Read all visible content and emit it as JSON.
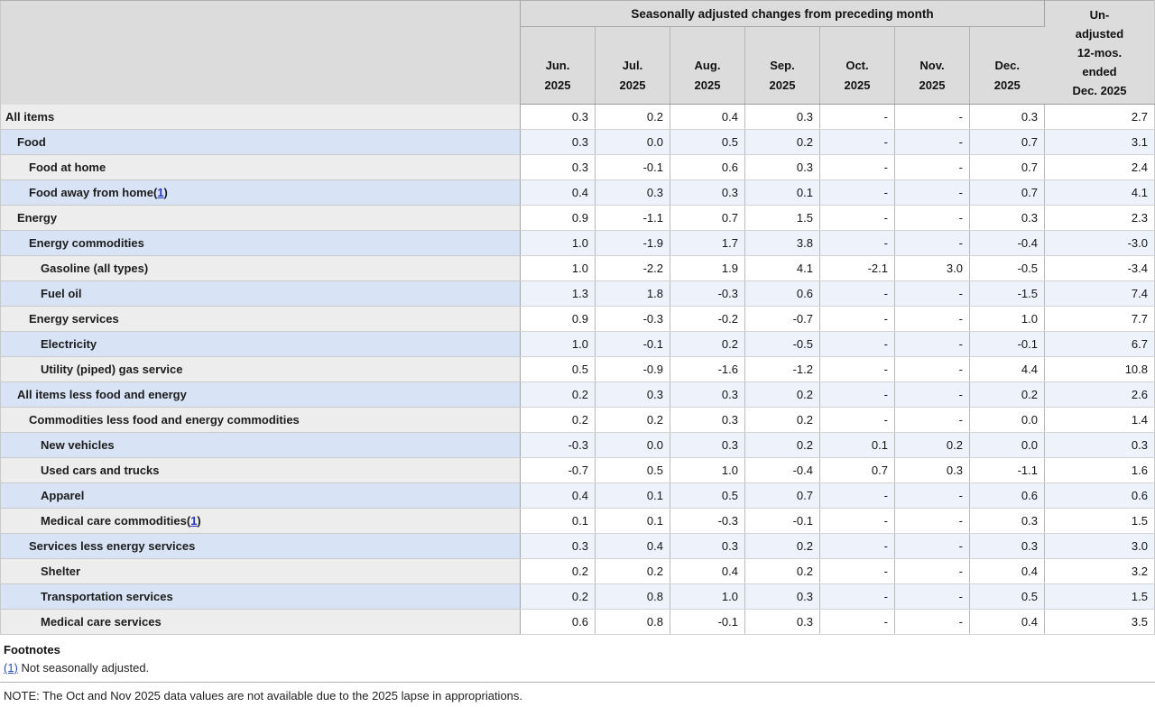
{
  "chart_data": {
    "type": "table",
    "group_header": "Seasonally adjusted changes from preceding month",
    "month_columns": [
      {
        "month": "Jun.",
        "year": "2025"
      },
      {
        "month": "Jul.",
        "year": "2025"
      },
      {
        "month": "Aug.",
        "year": "2025"
      },
      {
        "month": "Sep.",
        "year": "2025"
      },
      {
        "month": "Oct.",
        "year": "2025"
      },
      {
        "month": "Nov.",
        "year": "2025"
      },
      {
        "month": "Dec.",
        "year": "2025"
      }
    ],
    "last_column_label": "Un-adjusted 12-mos. ended Dec. 2025",
    "last_column_lines": [
      "Un-",
      "adjusted",
      "12-mos.",
      "ended",
      "Dec. 2025"
    ],
    "rows": [
      {
        "label": "All items",
        "indent": 0,
        "footnote": null,
        "values": [
          "0.3",
          "0.2",
          "0.4",
          "0.3",
          "-",
          "-",
          "0.3",
          "2.7"
        ]
      },
      {
        "label": "Food",
        "indent": 1,
        "footnote": null,
        "values": [
          "0.3",
          "0.0",
          "0.5",
          "0.2",
          "-",
          "-",
          "0.7",
          "3.1"
        ]
      },
      {
        "label": "Food at home",
        "indent": 2,
        "footnote": null,
        "values": [
          "0.3",
          "-0.1",
          "0.6",
          "0.3",
          "-",
          "-",
          "0.7",
          "2.4"
        ]
      },
      {
        "label": "Food away from home",
        "indent": 2,
        "footnote": "1",
        "values": [
          "0.4",
          "0.3",
          "0.3",
          "0.1",
          "-",
          "-",
          "0.7",
          "4.1"
        ]
      },
      {
        "label": "Energy",
        "indent": 1,
        "footnote": null,
        "values": [
          "0.9",
          "-1.1",
          "0.7",
          "1.5",
          "-",
          "-",
          "0.3",
          "2.3"
        ]
      },
      {
        "label": "Energy commodities",
        "indent": 2,
        "footnote": null,
        "values": [
          "1.0",
          "-1.9",
          "1.7",
          "3.8",
          "-",
          "-",
          "-0.4",
          "-3.0"
        ]
      },
      {
        "label": "Gasoline (all types)",
        "indent": 3,
        "footnote": null,
        "values": [
          "1.0",
          "-2.2",
          "1.9",
          "4.1",
          "-2.1",
          "3.0",
          "-0.5",
          "-3.4"
        ]
      },
      {
        "label": "Fuel oil",
        "indent": 3,
        "footnote": null,
        "values": [
          "1.3",
          "1.8",
          "-0.3",
          "0.6",
          "-",
          "-",
          "-1.5",
          "7.4"
        ]
      },
      {
        "label": "Energy services",
        "indent": 2,
        "footnote": null,
        "values": [
          "0.9",
          "-0.3",
          "-0.2",
          "-0.7",
          "-",
          "-",
          "1.0",
          "7.7"
        ]
      },
      {
        "label": "Electricity",
        "indent": 3,
        "footnote": null,
        "values": [
          "1.0",
          "-0.1",
          "0.2",
          "-0.5",
          "-",
          "-",
          "-0.1",
          "6.7"
        ]
      },
      {
        "label": "Utility (piped) gas service",
        "indent": 3,
        "footnote": null,
        "values": [
          "0.5",
          "-0.9",
          "-1.6",
          "-1.2",
          "-",
          "-",
          "4.4",
          "10.8"
        ]
      },
      {
        "label": "All items less food and energy",
        "indent": 1,
        "footnote": null,
        "values": [
          "0.2",
          "0.3",
          "0.3",
          "0.2",
          "-",
          "-",
          "0.2",
          "2.6"
        ]
      },
      {
        "label": "Commodities less food and energy commodities",
        "indent": 2,
        "footnote": null,
        "values": [
          "0.2",
          "0.2",
          "0.3",
          "0.2",
          "-",
          "-",
          "0.0",
          "1.4"
        ]
      },
      {
        "label": "New vehicles",
        "indent": 3,
        "footnote": null,
        "values": [
          "-0.3",
          "0.0",
          "0.3",
          "0.2",
          "0.1",
          "0.2",
          "0.0",
          "0.3"
        ]
      },
      {
        "label": "Used cars and trucks",
        "indent": 3,
        "footnote": null,
        "values": [
          "-0.7",
          "0.5",
          "1.0",
          "-0.4",
          "0.7",
          "0.3",
          "-1.1",
          "1.6"
        ]
      },
      {
        "label": "Apparel",
        "indent": 3,
        "footnote": null,
        "values": [
          "0.4",
          "0.1",
          "0.5",
          "0.7",
          "-",
          "-",
          "0.6",
          "0.6"
        ]
      },
      {
        "label": "Medical care commodities",
        "indent": 3,
        "footnote": "1",
        "values": [
          "0.1",
          "0.1",
          "-0.3",
          "-0.1",
          "-",
          "-",
          "0.3",
          "1.5"
        ]
      },
      {
        "label": "Services less energy services",
        "indent": 2,
        "footnote": null,
        "values": [
          "0.3",
          "0.4",
          "0.3",
          "0.2",
          "-",
          "-",
          "0.3",
          "3.0"
        ]
      },
      {
        "label": "Shelter",
        "indent": 3,
        "footnote": null,
        "values": [
          "0.2",
          "0.2",
          "0.4",
          "0.2",
          "-",
          "-",
          "0.4",
          "3.2"
        ]
      },
      {
        "label": "Transportation services",
        "indent": 3,
        "footnote": null,
        "values": [
          "0.2",
          "0.8",
          "1.0",
          "0.3",
          "-",
          "-",
          "0.5",
          "1.5"
        ]
      },
      {
        "label": "Medical care services",
        "indent": 3,
        "footnote": null,
        "values": [
          "0.6",
          "0.8",
          "-0.1",
          "0.3",
          "-",
          "-",
          "0.4",
          "3.5"
        ]
      }
    ]
  },
  "footnotes": {
    "title": "Footnotes",
    "items": [
      {
        "marker": "(1)",
        "text": "Not seasonally adjusted."
      }
    ]
  },
  "note": "NOTE: The Oct and Nov 2025 data values are not available due to the 2025 lapse in appropriations.",
  "colors": {
    "header_bg": "#dcdcdc",
    "stub_row_gray": "#ededed",
    "stub_row_blue": "#d8e4f6",
    "data_row_white": "#ffffff",
    "data_row_blue": "#eef2fb",
    "link_blue": "#2b50b5"
  }
}
